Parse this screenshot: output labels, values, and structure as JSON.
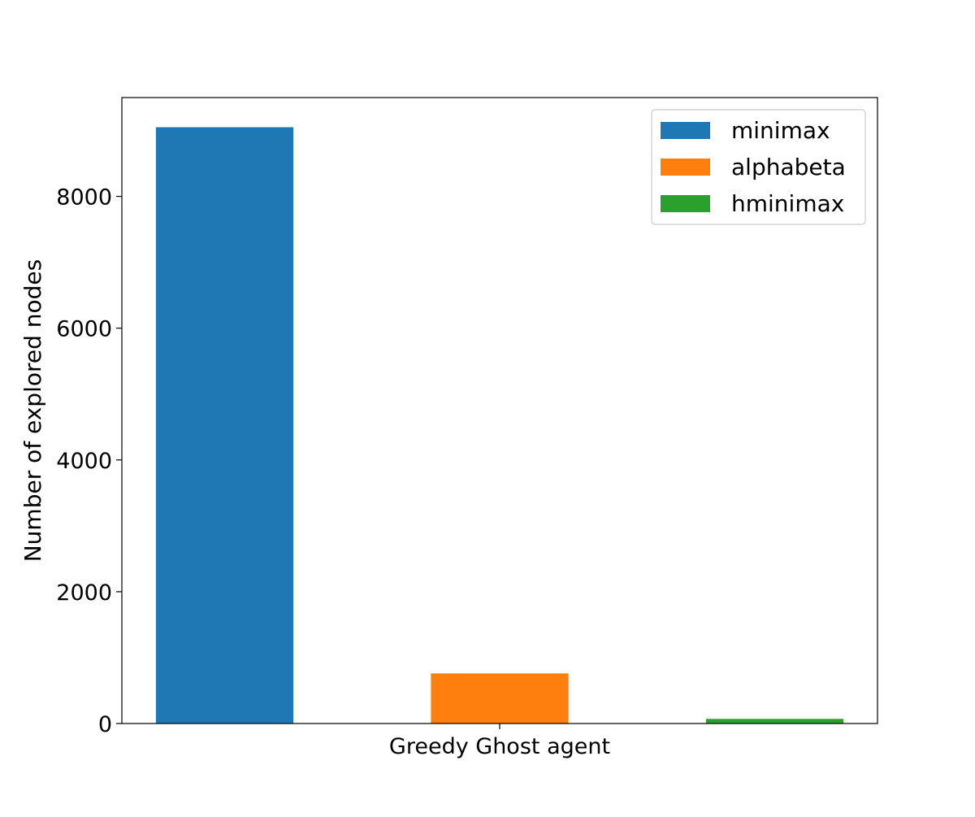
{
  "chart_data": {
    "type": "bar",
    "xlabel": "Greedy Ghost agent",
    "ylabel": "Number of explored nodes",
    "ylim": [
      0,
      9500
    ],
    "yticks": [
      0,
      2000,
      4000,
      6000,
      8000
    ],
    "xticks": [
      "Greedy Ghost agent"
    ],
    "legend_position": "top-right",
    "grid": false,
    "series": [
      {
        "name": "minimax",
        "values": [
          9050
        ],
        "color": "#1f77b4"
      },
      {
        "name": "alphabeta",
        "values": [
          760
        ],
        "color": "#ff7f0e"
      },
      {
        "name": "hminimax",
        "values": [
          70
        ],
        "color": "#2ca02c"
      }
    ]
  }
}
